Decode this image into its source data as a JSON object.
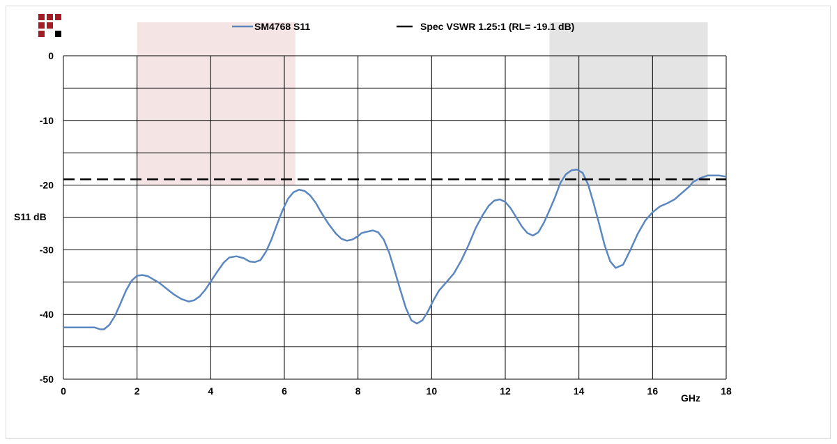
{
  "chart_data": {
    "type": "line",
    "xlabel": "GHz",
    "ylabel": "S11 dB",
    "xlim": [
      0,
      18
    ],
    "ylim": [
      -50,
      0
    ],
    "x_ticks": [
      0,
      2,
      4,
      6,
      8,
      10,
      12,
      14,
      16,
      18
    ],
    "y_ticks": [
      0,
      -10,
      -20,
      -30,
      -40,
      -50
    ],
    "minor_y_gridlines": [
      -5,
      -15,
      -25,
      -35,
      -45
    ],
    "grid": true,
    "legend": "top-center",
    "shaded_bands": [
      {
        "x_range": [
          2.0,
          6.3
        ],
        "y_range": [
          -20,
          0
        ],
        "color": "#f4e4e4"
      },
      {
        "x_range": [
          13.2,
          17.5
        ],
        "y_range": [
          -20,
          0
        ],
        "color": "#e4e4e4"
      }
    ],
    "series": [
      {
        "name": "SM4768 S11",
        "color": "#5b87c0",
        "style": "solid",
        "x": [
          0,
          0.3,
          0.6,
          0.85,
          1.0,
          1.1,
          1.25,
          1.4,
          1.55,
          1.7,
          1.85,
          2.0,
          2.15,
          2.3,
          2.45,
          2.6,
          2.8,
          3.0,
          3.2,
          3.4,
          3.55,
          3.7,
          3.85,
          4.0,
          4.2,
          4.35,
          4.5,
          4.7,
          4.9,
          5.05,
          5.2,
          5.35,
          5.5,
          5.65,
          5.8,
          5.95,
          6.1,
          6.25,
          6.4,
          6.55,
          6.7,
          6.85,
          7.0,
          7.2,
          7.4,
          7.55,
          7.7,
          7.85,
          8.0,
          8.1,
          8.25,
          8.4,
          8.55,
          8.7,
          8.85,
          9.0,
          9.15,
          9.3,
          9.45,
          9.6,
          9.75,
          9.9,
          10.05,
          10.2,
          10.4,
          10.6,
          10.8,
          11.0,
          11.2,
          11.4,
          11.55,
          11.7,
          11.85,
          12.0,
          12.15,
          12.3,
          12.45,
          12.6,
          12.75,
          12.9,
          13.05,
          13.2,
          13.35,
          13.5,
          13.65,
          13.8,
          13.95,
          14.1,
          14.25,
          14.4,
          14.55,
          14.7,
          14.85,
          15.0,
          15.2,
          15.4,
          15.6,
          15.8,
          16.0,
          16.2,
          16.4,
          16.6,
          16.8,
          17.0,
          17.1,
          17.3,
          17.5,
          17.8,
          18.0
        ],
        "y": [
          -42.0,
          -42.0,
          -42.0,
          -42.0,
          -42.3,
          -42.3,
          -41.6,
          -40.2,
          -38.3,
          -36.3,
          -34.8,
          -34.0,
          -33.9,
          -34.1,
          -34.6,
          -35.1,
          -36.0,
          -36.9,
          -37.6,
          -38.0,
          -37.8,
          -37.2,
          -36.2,
          -34.9,
          -33.2,
          -32.0,
          -31.2,
          -31.0,
          -31.3,
          -31.8,
          -31.9,
          -31.6,
          -30.3,
          -28.4,
          -26.1,
          -23.9,
          -22.1,
          -21.1,
          -20.7,
          -20.9,
          -21.6,
          -22.7,
          -24.2,
          -26.0,
          -27.5,
          -28.3,
          -28.6,
          -28.4,
          -27.9,
          -27.4,
          -27.2,
          -27.0,
          -27.3,
          -28.4,
          -30.5,
          -33.3,
          -36.2,
          -39.0,
          -40.9,
          -41.4,
          -40.9,
          -39.5,
          -37.8,
          -36.3,
          -35.0,
          -33.7,
          -31.7,
          -29.3,
          -26.6,
          -24.5,
          -23.2,
          -22.4,
          -22.2,
          -22.6,
          -23.6,
          -25.0,
          -26.4,
          -27.4,
          -27.8,
          -27.3,
          -25.8,
          -23.9,
          -21.9,
          -19.6,
          -18.3,
          -17.7,
          -17.6,
          -18.1,
          -19.9,
          -22.8,
          -26.0,
          -29.3,
          -31.8,
          -32.8,
          -32.3,
          -30.0,
          -27.5,
          -25.5,
          -24.2,
          -23.3,
          -22.8,
          -22.2,
          -21.2,
          -20.2,
          -19.5,
          -18.9,
          -18.5,
          -18.5,
          -18.7
        ],
        "y_note_removed": true
      },
      {
        "name": "Spec VSWR 1.25:1 (RL=  -19.1 dB)",
        "color": "#000000",
        "style": "dashed",
        "x": [
          0,
          18
        ],
        "y": [
          -19.1,
          -19.1
        ]
      }
    ]
  },
  "legend": {
    "series_1_label": "SM4768 S11",
    "series_2_label": "Spec VSWR 1.25:1 (RL=  -19.1 dB)"
  },
  "logo": {
    "colors": [
      "#a31d24",
      "#000000"
    ]
  }
}
